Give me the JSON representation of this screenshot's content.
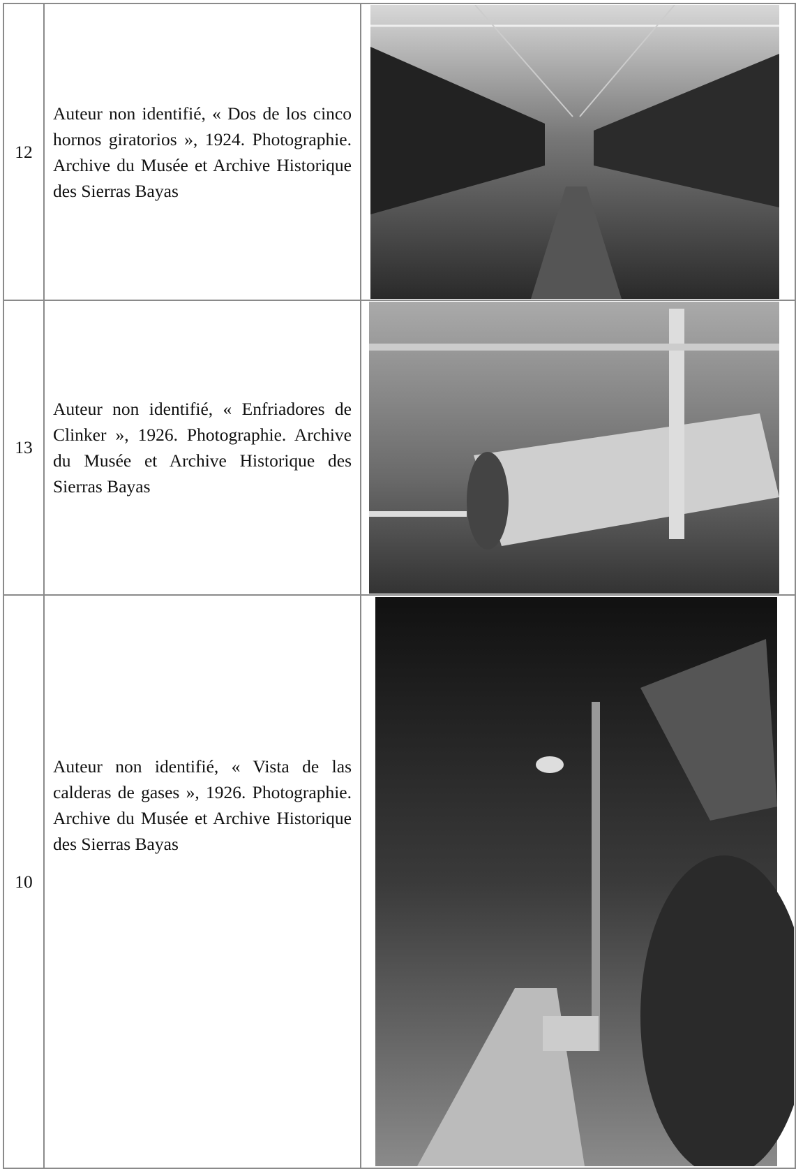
{
  "table": {
    "rows": [
      [
        "12",
        "Auteur non identifié, « Dos de los cinco hornos giratorios », 1924. Photographie. Archive du Musée et Archive Historique des Sierras Bayas"
      ],
      [
        "13",
        "Auteur non identifié, « Enfriadores de Clinker », 1926. Photographie. Archive du Musée et Archive Historique des Sierras Bayas"
      ],
      [
        "10",
        "Auteur non identifié, « Vista de las calderas de gases », 1926. Photographie. Archive du Musée et Archive Historique des Sierras Bayas"
      ]
    ]
  }
}
